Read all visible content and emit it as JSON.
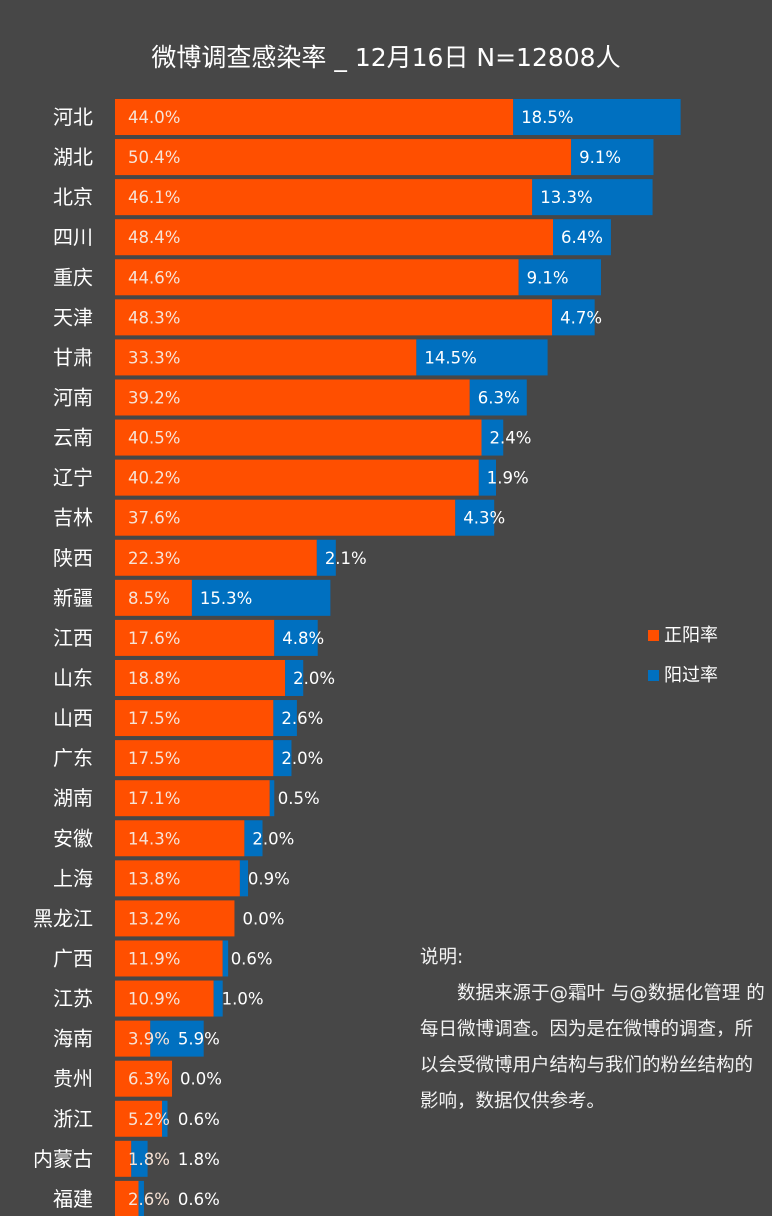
{
  "chart_data": {
    "type": "bar",
    "orientation": "horizontal",
    "stacked": true,
    "title": "微博调查感染率 _ 12月16日 N=12808人",
    "categories": [
      "河北",
      "湖北",
      "北京",
      "四川",
      "重庆",
      "天津",
      "甘肃",
      "河南",
      "云南",
      "辽宁",
      "吉林",
      "陕西",
      "新疆",
      "江西",
      "山东",
      "山西",
      "广东",
      "湖南",
      "安徽",
      "上海",
      "黑龙江",
      "广西",
      "江苏",
      "海南",
      "贵州",
      "浙江",
      "内蒙古",
      "福建"
    ],
    "series": [
      {
        "name": "正阳率",
        "color": "#FF4F00",
        "values": [
          44.0,
          50.4,
          46.1,
          48.4,
          44.6,
          48.3,
          33.3,
          39.2,
          40.5,
          40.2,
          37.6,
          22.3,
          8.5,
          17.6,
          18.8,
          17.5,
          17.5,
          17.1,
          14.3,
          13.8,
          13.2,
          11.9,
          10.9,
          3.9,
          6.3,
          5.2,
          1.8,
          2.6
        ]
      },
      {
        "name": "阳过率",
        "color": "#0070C0",
        "values": [
          18.5,
          9.1,
          13.3,
          6.4,
          9.1,
          4.7,
          14.5,
          6.3,
          2.4,
          1.9,
          4.3,
          2.1,
          15.3,
          4.8,
          2.0,
          2.6,
          2.0,
          0.5,
          2.0,
          0.9,
          0.0,
          0.6,
          1.0,
          5.9,
          0.0,
          0.6,
          1.8,
          0.6
        ]
      }
    ],
    "value_format": "percent_one_decimal",
    "legend_position": "right",
    "grid": false,
    "xlim": [
      0,
      70
    ]
  },
  "note": {
    "heading": "说明:",
    "body": "数据来源于@霜叶 与@数据化管理 的每日微博调查。因为是在微博的调查，所以会受微博用户结构与我们的粉丝结构的影响，数据仅供参考。"
  },
  "colors": {
    "background": "#474747",
    "label_on_orange": "#F7E3D6"
  }
}
